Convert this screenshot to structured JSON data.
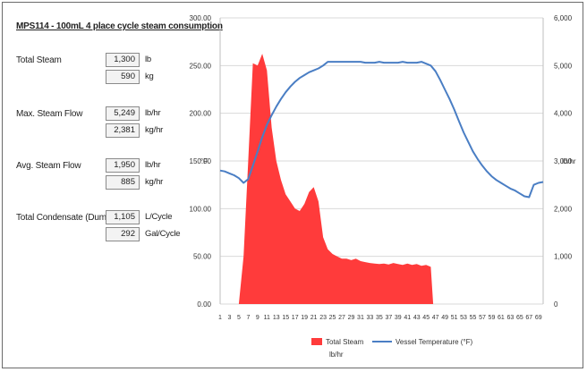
{
  "title": "MPS114 - 100mL 4 place cycle steam consumption",
  "metrics": [
    {
      "label": "Total Steam",
      "values": [
        {
          "value": "1,300",
          "unit": "lb"
        },
        {
          "value": "590",
          "unit": "kg"
        }
      ]
    },
    {
      "label": "Max. Steam Flow",
      "values": [
        {
          "value": "5,249",
          "unit": "lb/hr"
        },
        {
          "value": "2,381",
          "unit": "kg/hr"
        }
      ]
    },
    {
      "label": "Avg. Steam Flow",
      "values": [
        {
          "value": "1,950",
          "unit": "lb/hr"
        },
        {
          "value": "885",
          "unit": "kg/hr"
        }
      ]
    },
    {
      "label": "Total Condensate (Dumps)",
      "values": [
        {
          "value": "1,105",
          "unit": "L/Cycle"
        },
        {
          "value": "292",
          "unit": "Gal/Cycle"
        }
      ]
    }
  ],
  "chart_data": {
    "type": "line",
    "y_left_label": "°F",
    "y_right_label": "lb/hr",
    "y_left_range": [
      0,
      300
    ],
    "y_right_range": [
      0,
      6000
    ],
    "y_left_ticks": [
      "0.00",
      "50.00",
      "100.00",
      "150.00",
      "200.00",
      "250.00",
      "300.00"
    ],
    "y_right_ticks": [
      "0",
      "1,000",
      "2,000",
      "3,000",
      "4,000",
      "5,000",
      "6,000"
    ],
    "x_range": [
      1,
      70
    ],
    "x_ticks": [
      "1",
      "3",
      "5",
      "7",
      "9",
      "11",
      "13",
      "15",
      "17",
      "19",
      "21",
      "23",
      "25",
      "27",
      "29",
      "31",
      "33",
      "35",
      "37",
      "39",
      "41",
      "43",
      "45",
      "47",
      "49",
      "51",
      "53",
      "55",
      "57",
      "59",
      "61",
      "63",
      "65",
      "67",
      "69"
    ],
    "grid": "horizontal",
    "legend_position": "bottom",
    "legend": [
      {
        "name": "Total Steam",
        "sub": "lb/hr",
        "color": "#ff3b3b"
      },
      {
        "name": "Vessel Temperature (°F)",
        "color": "#4a7ec4"
      }
    ],
    "series": [
      {
        "name": "Total Steam",
        "type": "area",
        "axis": "right",
        "color": "#ff3b3b",
        "x": [
          5,
          6,
          7,
          8,
          9,
          10,
          11,
          12,
          13,
          14,
          15,
          16,
          17,
          18,
          19,
          20,
          21,
          22,
          23,
          24,
          25,
          26,
          27,
          28,
          29,
          30,
          31,
          32,
          33,
          34,
          35,
          36,
          37,
          38,
          39,
          40,
          41,
          42,
          43,
          44,
          45,
          46,
          46.5
        ],
        "y": [
          0,
          1000,
          3000,
          5050,
          5000,
          5249,
          4900,
          3700,
          3000,
          2600,
          2300,
          2150,
          2000,
          1950,
          2100,
          2350,
          2450,
          2150,
          1400,
          1150,
          1050,
          1000,
          950,
          950,
          920,
          950,
          900,
          880,
          860,
          850,
          840,
          850,
          830,
          860,
          840,
          820,
          850,
          820,
          840,
          800,
          820,
          780,
          0
        ]
      },
      {
        "name": "Vessel Temperature (°F)",
        "type": "line",
        "axis": "left",
        "color": "#4a7ec4",
        "x": [
          1,
          2,
          3,
          4,
          5,
          6,
          7,
          8,
          9,
          10,
          11,
          12,
          13,
          14,
          15,
          16,
          17,
          18,
          19,
          20,
          21,
          22,
          23,
          24,
          25,
          26,
          27,
          28,
          29,
          30,
          31,
          32,
          33,
          34,
          35,
          36,
          37,
          38,
          39,
          40,
          41,
          42,
          43,
          44,
          45,
          46,
          47,
          48,
          49,
          50,
          51,
          52,
          53,
          54,
          55,
          56,
          57,
          58,
          59,
          60,
          61,
          62,
          63,
          64,
          65,
          66,
          67,
          68,
          69,
          70
        ],
        "y": [
          140,
          139,
          137,
          135,
          132,
          127,
          131,
          145,
          160,
          175,
          188,
          198,
          207,
          215,
          222,
          228,
          233,
          237,
          240,
          243,
          245,
          247,
          250,
          254,
          254,
          254,
          254,
          254,
          254,
          254,
          254,
          253,
          253,
          253,
          254,
          253,
          253,
          253,
          253,
          254,
          253,
          253,
          253,
          254,
          252,
          250,
          244,
          235,
          225,
          215,
          204,
          192,
          180,
          170,
          160,
          152,
          145,
          139,
          134,
          130,
          127,
          124,
          121,
          119,
          116,
          113,
          112,
          125,
          127,
          128
        ]
      }
    ]
  }
}
